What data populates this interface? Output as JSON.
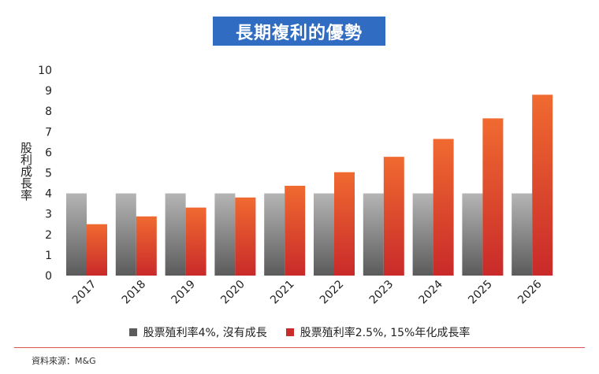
{
  "title": "長期複利的優勢",
  "source": "資料來源：M&G",
  "colors": {
    "gray_top": "#b5b5b5",
    "gray_bottom": "#5b5b5b",
    "red_top": "#f06a30",
    "red_bottom": "#c92a2a",
    "title_bg": "#2f6cc2"
  },
  "chart_data": {
    "type": "bar",
    "ylabel": "股利成長率",
    "xlabel": "",
    "ylim": [
      0,
      10
    ],
    "yticks": [
      0,
      1,
      2,
      3,
      4,
      5,
      6,
      7,
      8,
      9,
      10
    ],
    "categories": [
      "2017",
      "2018",
      "2019",
      "2020",
      "2021",
      "2022",
      "2023",
      "2024",
      "2025",
      "2026"
    ],
    "series": [
      {
        "name": "股票殖利率4%, 沒有成長",
        "values": [
          4,
          4,
          4,
          4,
          4,
          4,
          4,
          4,
          4,
          4
        ]
      },
      {
        "name": "股票殖利率2.5%, 15%年化成長率",
        "values": [
          2.5,
          2.88,
          3.31,
          3.8,
          4.37,
          5.03,
          5.78,
          6.65,
          7.65,
          8.8
        ]
      }
    ],
    "legend_position": "bottom",
    "grid": false
  }
}
